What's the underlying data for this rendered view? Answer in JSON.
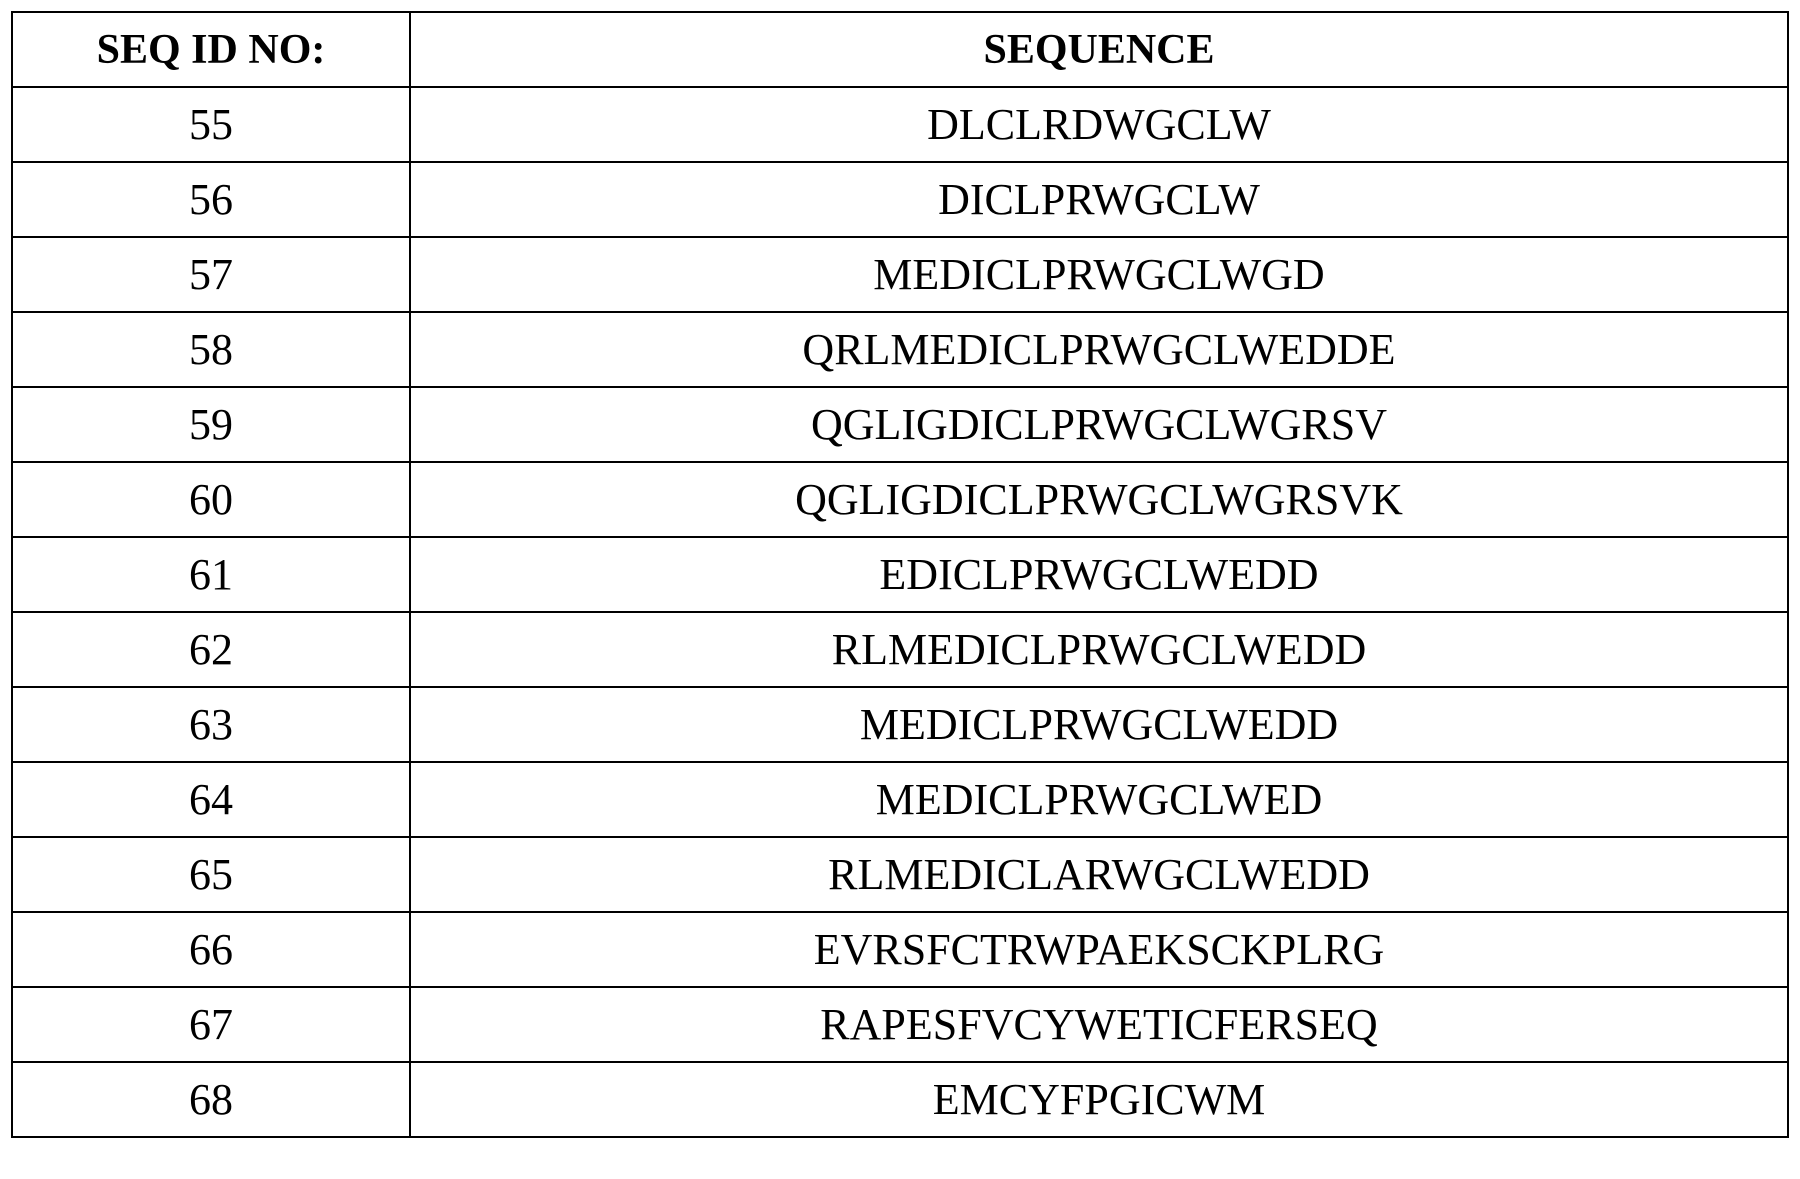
{
  "table": {
    "headers": [
      "SEQ ID NO:",
      "SEQUENCE"
    ],
    "rows": [
      {
        "id": "55",
        "seq": "DLCLRDWGCLW"
      },
      {
        "id": "56",
        "seq": "DICLPRWGCLW"
      },
      {
        "id": "57",
        "seq": "MEDICLPRWGCLWGD"
      },
      {
        "id": "58",
        "seq": "QRLMEDICLPRWGCLWEDDE"
      },
      {
        "id": "59",
        "seq": "QGLIGDICLPRWGCLWGRSV"
      },
      {
        "id": "60",
        "seq": "QGLIGDICLPRWGCLWGRSVK"
      },
      {
        "id": "61",
        "seq": "EDICLPRWGCLWEDD"
      },
      {
        "id": "62",
        "seq": "RLMEDICLPRWGCLWEDD"
      },
      {
        "id": "63",
        "seq": "MEDICLPRWGCLWEDD"
      },
      {
        "id": "64",
        "seq": "MEDICLPRWGCLWED"
      },
      {
        "id": "65",
        "seq": "RLMEDICLARWGCLWEDD"
      },
      {
        "id": "66",
        "seq": "EVRSFCTRWPAEKSCKPLRG"
      },
      {
        "id": "67",
        "seq": "RAPESFVCYWETICFERSEQ"
      },
      {
        "id": "68",
        "seq": "EMCYFPGICWM"
      }
    ]
  }
}
